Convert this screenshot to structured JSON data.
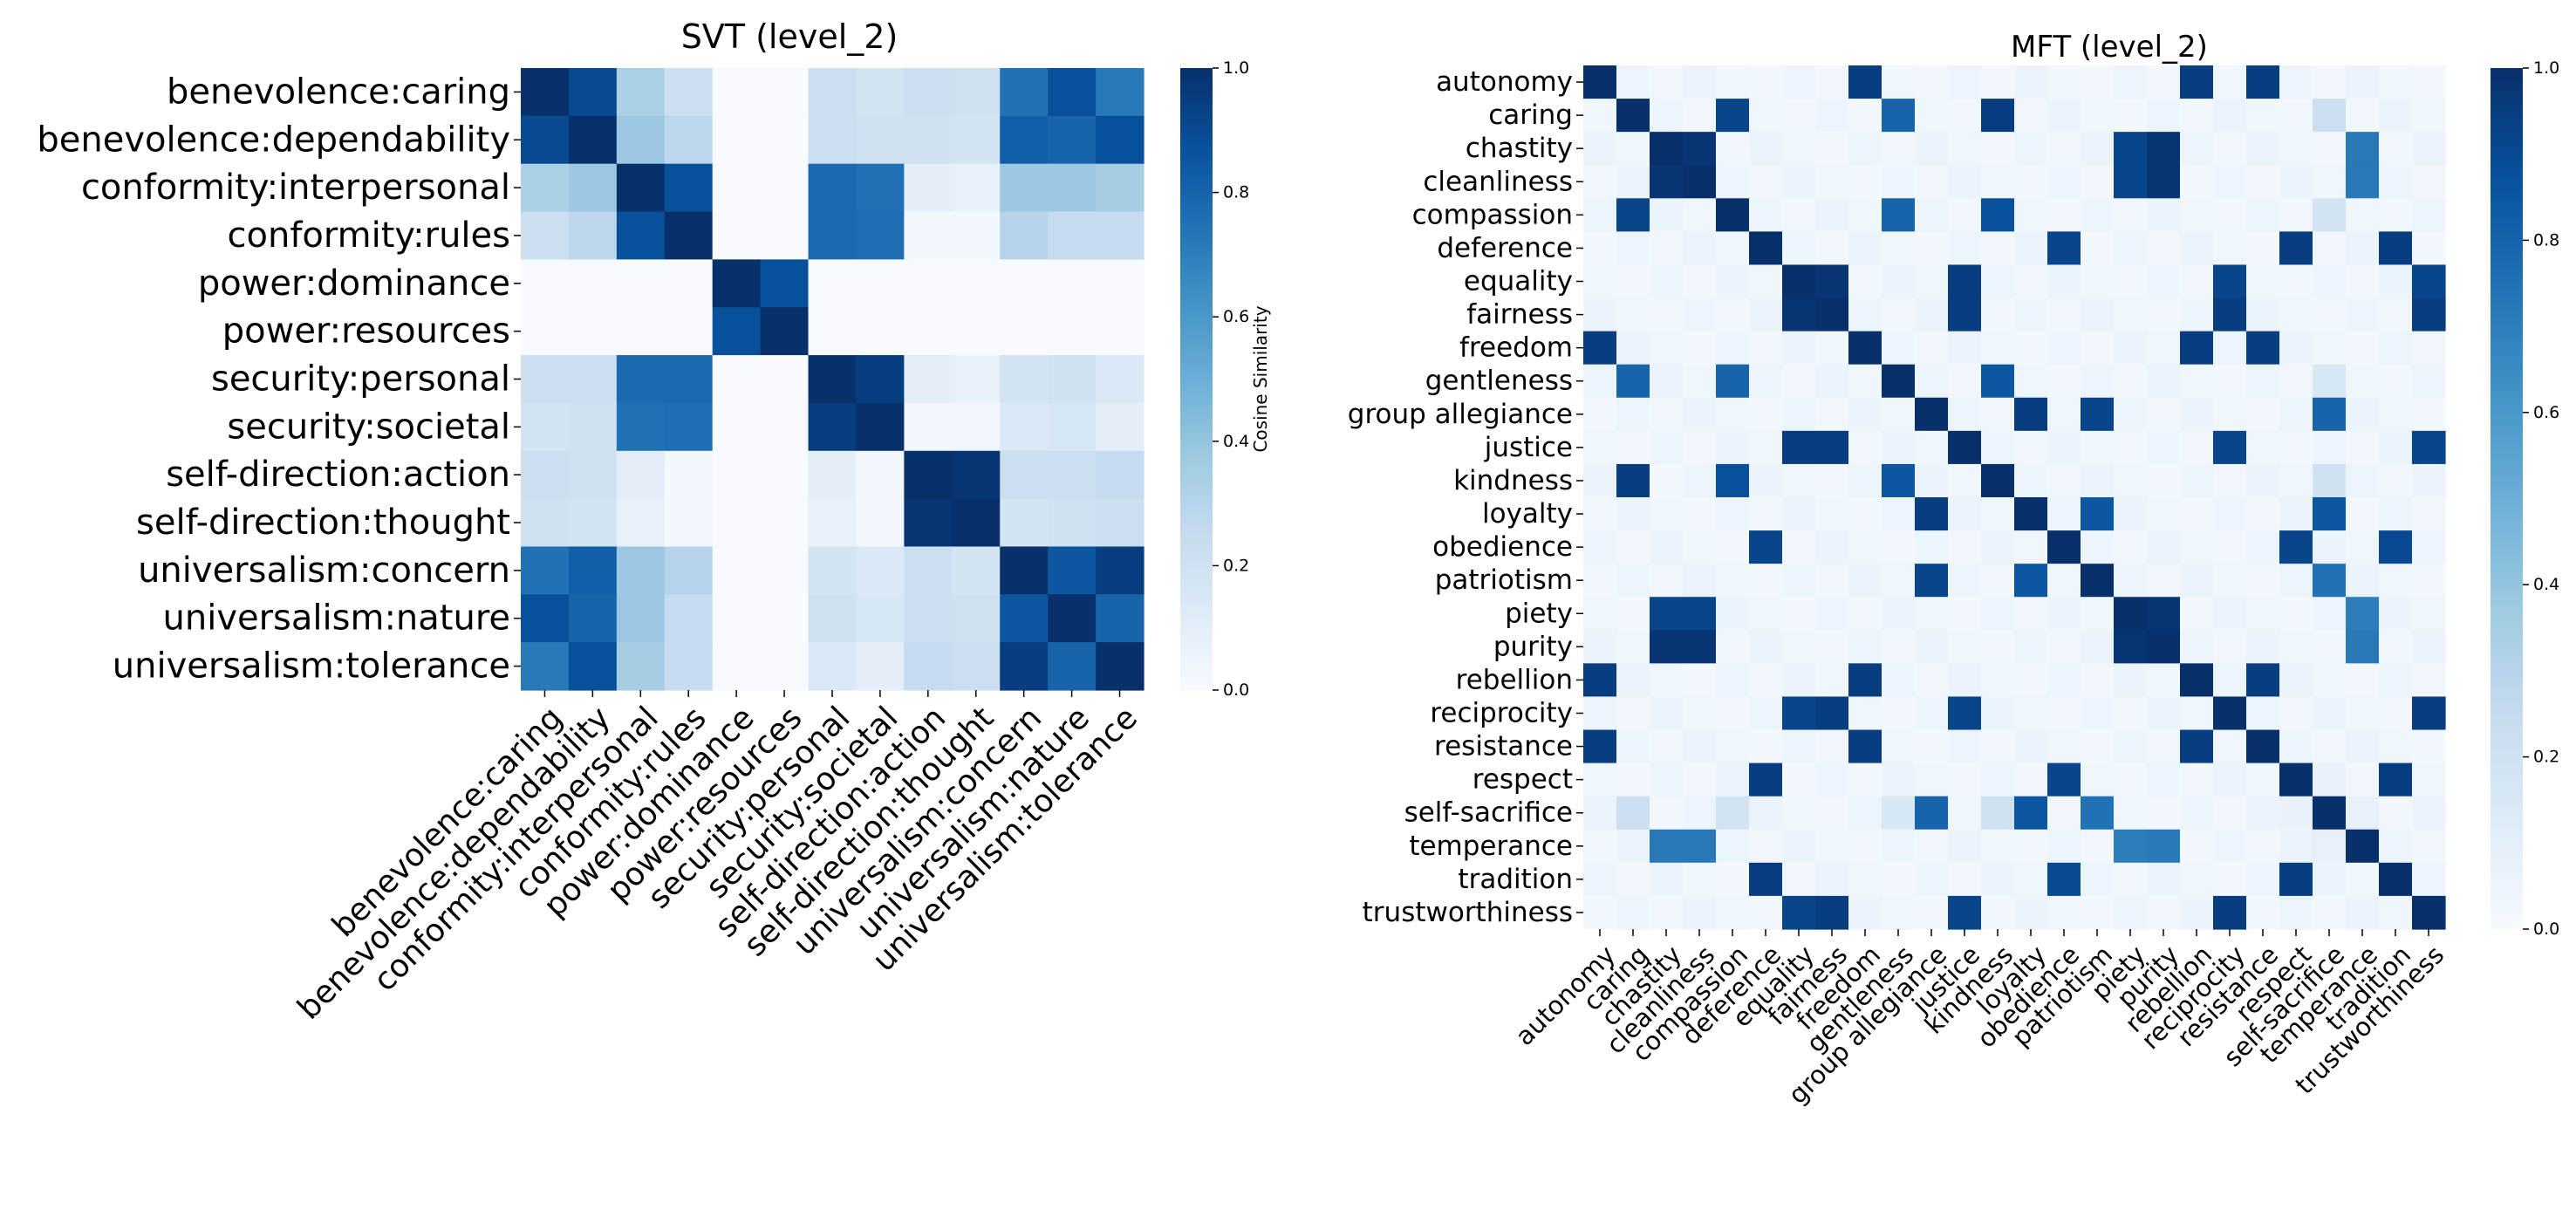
{
  "chart_data": [
    {
      "type": "heatmap",
      "title": "SVT (level_2)",
      "labels": [
        "benevolence:caring",
        "benevolence:dependability",
        "conformity:interpersonal",
        "conformity:rules",
        "power:dominance",
        "power:resources",
        "security:personal",
        "security:societal",
        "self-direction:action",
        "self-direction:thought",
        "universalism:concern",
        "universalism:nature",
        "universalism:tolerance"
      ],
      "values": [
        [
          1.0,
          0.9,
          0.33,
          0.22,
          0.0,
          0.0,
          0.22,
          0.18,
          0.22,
          0.2,
          0.75,
          0.88,
          0.72
        ],
        [
          0.9,
          1.0,
          0.38,
          0.28,
          0.0,
          0.0,
          0.22,
          0.2,
          0.2,
          0.18,
          0.82,
          0.8,
          0.88
        ],
        [
          0.33,
          0.38,
          1.0,
          0.88,
          0.0,
          0.0,
          0.78,
          0.75,
          0.1,
          0.08,
          0.38,
          0.38,
          0.35
        ],
        [
          0.22,
          0.28,
          0.88,
          1.0,
          0.0,
          0.0,
          0.78,
          0.76,
          0.02,
          0.02,
          0.3,
          0.25,
          0.25
        ],
        [
          0.0,
          0.0,
          0.0,
          0.0,
          1.0,
          0.88,
          0.0,
          0.0,
          0.0,
          0.0,
          0.0,
          0.0,
          0.0
        ],
        [
          0.0,
          0.0,
          0.0,
          0.0,
          0.88,
          1.0,
          0.0,
          0.0,
          0.0,
          0.0,
          0.0,
          0.0,
          0.0
        ],
        [
          0.22,
          0.22,
          0.78,
          0.78,
          0.0,
          0.0,
          1.0,
          0.95,
          0.1,
          0.08,
          0.18,
          0.2,
          0.14
        ],
        [
          0.18,
          0.2,
          0.75,
          0.76,
          0.0,
          0.0,
          0.95,
          1.0,
          0.03,
          0.03,
          0.14,
          0.16,
          0.1
        ],
        [
          0.22,
          0.2,
          0.1,
          0.02,
          0.0,
          0.0,
          0.1,
          0.03,
          1.0,
          0.98,
          0.22,
          0.22,
          0.25
        ],
        [
          0.2,
          0.18,
          0.08,
          0.02,
          0.0,
          0.0,
          0.08,
          0.03,
          0.98,
          1.0,
          0.18,
          0.2,
          0.22
        ],
        [
          0.75,
          0.82,
          0.38,
          0.3,
          0.0,
          0.0,
          0.18,
          0.14,
          0.22,
          0.18,
          1.0,
          0.85,
          0.95
        ],
        [
          0.88,
          0.8,
          0.38,
          0.25,
          0.0,
          0.0,
          0.2,
          0.16,
          0.22,
          0.2,
          0.85,
          1.0,
          0.8
        ],
        [
          0.72,
          0.88,
          0.35,
          0.25,
          0.0,
          0.0,
          0.14,
          0.1,
          0.25,
          0.22,
          0.95,
          0.8,
          1.0
        ]
      ],
      "colorbar": {
        "label": "Cosine Similarity",
        "ticks": [
          "0.0",
          "0.2",
          "0.4",
          "0.6",
          "0.8",
          "1.0"
        ],
        "range": [
          0,
          1
        ]
      },
      "colormap": [
        "#f7fbff",
        "#deebf7",
        "#c6dbef",
        "#9ecae1",
        "#6baed6",
        "#4292c6",
        "#2171b5",
        "#08519c",
        "#08306b"
      ]
    },
    {
      "type": "heatmap",
      "title": "MFT (level_2)",
      "labels": [
        "autonomy",
        "caring",
        "chastity",
        "cleanliness",
        "compassion",
        "deference",
        "equality",
        "fairness",
        "freedom",
        "gentleness",
        "group allegiance",
        "justice",
        "kindness",
        "loyalty",
        "obedience",
        "patriotism",
        "piety",
        "purity",
        "rebellion",
        "reciprocity",
        "resistance",
        "respect",
        "self-sacrifice",
        "temperance",
        "tradition",
        "trustworthiness"
      ],
      "high_pairs": [
        [
          "autonomy",
          "freedom",
          0.95
        ],
        [
          "autonomy",
          "rebellion",
          0.95
        ],
        [
          "autonomy",
          "resistance",
          0.95
        ],
        [
          "freedom",
          "rebellion",
          0.95
        ],
        [
          "freedom",
          "resistance",
          0.95
        ],
        [
          "rebellion",
          "resistance",
          0.95
        ],
        [
          "caring",
          "compassion",
          0.92
        ],
        [
          "caring",
          "gentleness",
          0.8
        ],
        [
          "caring",
          "kindness",
          0.95
        ],
        [
          "compassion",
          "gentleness",
          0.8
        ],
        [
          "compassion",
          "kindness",
          0.88
        ],
        [
          "gentleness",
          "kindness",
          0.85
        ],
        [
          "chastity",
          "cleanliness",
          0.98
        ],
        [
          "chastity",
          "piety",
          0.92
        ],
        [
          "chastity",
          "purity",
          0.98
        ],
        [
          "cleanliness",
          "piety",
          0.92
        ],
        [
          "cleanliness",
          "purity",
          0.98
        ],
        [
          "piety",
          "purity",
          0.98
        ],
        [
          "chastity",
          "temperance",
          0.72
        ],
        [
          "cleanliness",
          "temperance",
          0.72
        ],
        [
          "piety",
          "temperance",
          0.7
        ],
        [
          "purity",
          "temperance",
          0.72
        ],
        [
          "deference",
          "obedience",
          0.92
        ],
        [
          "deference",
          "respect",
          0.95
        ],
        [
          "deference",
          "tradition",
          0.95
        ],
        [
          "obedience",
          "respect",
          0.92
        ],
        [
          "obedience",
          "tradition",
          0.9
        ],
        [
          "respect",
          "tradition",
          0.95
        ],
        [
          "equality",
          "fairness",
          0.98
        ],
        [
          "equality",
          "justice",
          0.95
        ],
        [
          "equality",
          "reciprocity",
          0.92
        ],
        [
          "equality",
          "trustworthiness",
          0.92
        ],
        [
          "fairness",
          "justice",
          0.95
        ],
        [
          "fairness",
          "reciprocity",
          0.95
        ],
        [
          "fairness",
          "trustworthiness",
          0.95
        ],
        [
          "justice",
          "reciprocity",
          0.92
        ],
        [
          "justice",
          "trustworthiness",
          0.92
        ],
        [
          "reciprocity",
          "trustworthiness",
          0.95
        ],
        [
          "group allegiance",
          "loyalty",
          0.95
        ],
        [
          "group allegiance",
          "patriotism",
          0.92
        ],
        [
          "loyalty",
          "patriotism",
          0.85
        ],
        [
          "group allegiance",
          "self-sacrifice",
          0.8
        ],
        [
          "loyalty",
          "self-sacrifice",
          0.85
        ],
        [
          "patriotism",
          "self-sacrifice",
          0.75
        ],
        [
          "caring",
          "self-sacrifice",
          0.22
        ],
        [
          "compassion",
          "self-sacrifice",
          0.18
        ],
        [
          "gentleness",
          "self-sacrifice",
          0.15
        ],
        [
          "kindness",
          "self-sacrifice",
          0.2
        ],
        [
          "temperance",
          "self-sacrifice",
          0.08
        ],
        [
          "respect",
          "self-sacrifice",
          0.07
        ]
      ],
      "base_value": 0.02,
      "colorbar": {
        "label": "",
        "ticks": [
          "0.0",
          "0.2",
          "0.4",
          "0.6",
          "0.8",
          "1.0"
        ],
        "range": [
          0,
          1
        ]
      }
    }
  ]
}
